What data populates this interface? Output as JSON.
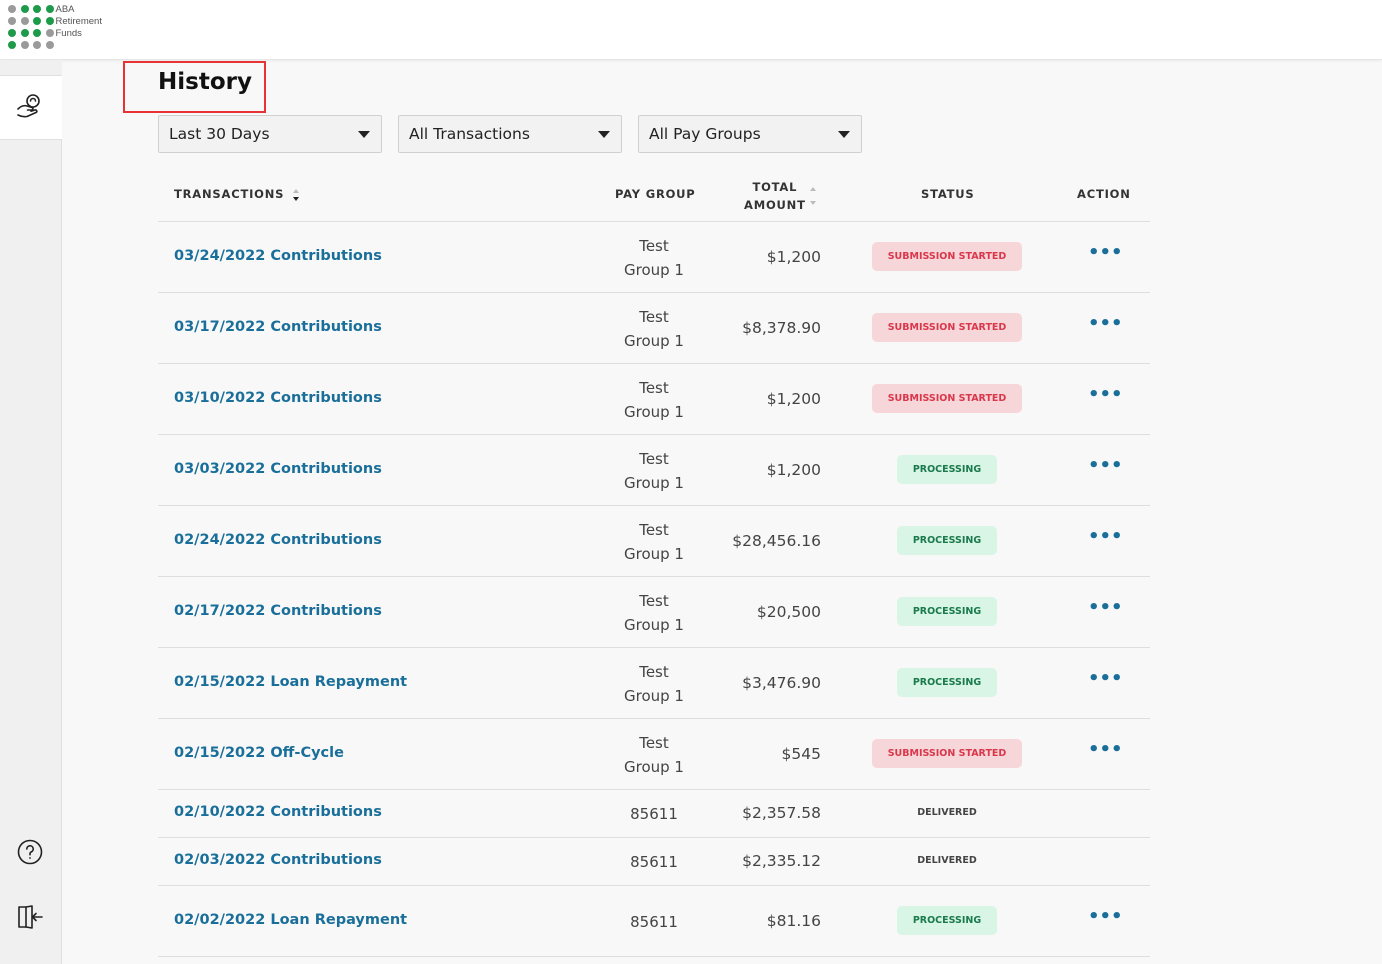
{
  "logo": {
    "lines": [
      "ABA",
      "Retirement",
      "Funds"
    ],
    "dot_colors": [
      "#9a9a9a",
      "#1e9b4a",
      "#1e9b4a",
      "#1e9b4a",
      "#9a9a9a",
      "#9a9a9a",
      "#1e9b4a",
      "#1e9b4a",
      "#1e9b4a",
      "#1e9b4a",
      "#1e9b4a",
      "#9a9a9a",
      "#1e9b4a",
      "#9a9a9a",
      "#9a9a9a",
      "#9a9a9a"
    ]
  },
  "sidebar": {
    "icons": [
      "hand-coin-icon",
      "help-circle-icon",
      "logout-icon"
    ]
  },
  "page": {
    "title": "History"
  },
  "filters": [
    {
      "name": "date-range-dropdown",
      "value": "Last 30 Days"
    },
    {
      "name": "transaction-type-dropdown",
      "value": "All Transactions"
    },
    {
      "name": "pay-group-dropdown",
      "value": "All Pay Groups"
    }
  ],
  "table": {
    "headers": {
      "transactions": "TRANSACTIONS",
      "pay_group": "PAY GROUP",
      "total_amount_line1": "TOTAL",
      "total_amount_line2": "AMOUNT",
      "status": "STATUS",
      "action": "ACTION"
    },
    "rows": [
      {
        "transaction": "03/24/2022 Contributions",
        "group_line1": "Test",
        "group_line2": "Group 1",
        "amount": "$1,200",
        "status": "SUBMISSION STARTED",
        "status_type": "started",
        "action": "•••"
      },
      {
        "transaction": "03/17/2022 Contributions",
        "group_line1": "Test",
        "group_line2": "Group 1",
        "amount": "$8,378.90",
        "status": "SUBMISSION STARTED",
        "status_type": "started",
        "action": "•••"
      },
      {
        "transaction": "03/10/2022 Contributions",
        "group_line1": "Test",
        "group_line2": "Group 1",
        "amount": "$1,200",
        "status": "SUBMISSION STARTED",
        "status_type": "started",
        "action": "•••"
      },
      {
        "transaction": "03/03/2022 Contributions",
        "group_line1": "Test",
        "group_line2": "Group 1",
        "amount": "$1,200",
        "status": "PROCESSING",
        "status_type": "processing",
        "action": "•••"
      },
      {
        "transaction": "02/24/2022 Contributions",
        "group_line1": "Test",
        "group_line2": "Group 1",
        "amount": "$28,456.16",
        "status": "PROCESSING",
        "status_type": "processing",
        "action": "•••"
      },
      {
        "transaction": "02/17/2022 Contributions",
        "group_line1": "Test",
        "group_line2": "Group 1",
        "amount": "$20,500",
        "status": "PROCESSING",
        "status_type": "processing",
        "action": "•••"
      },
      {
        "transaction": "02/15/2022 Loan Repayment",
        "group_line1": "Test",
        "group_line2": "Group 1",
        "amount": "$3,476.90",
        "status": "PROCESSING",
        "status_type": "processing",
        "action": "•••"
      },
      {
        "transaction": "02/15/2022 Off-Cycle",
        "group_line1": "Test",
        "group_line2": "Group 1",
        "amount": "$545",
        "status": "SUBMISSION STARTED",
        "status_type": "started",
        "action": "•••"
      },
      {
        "transaction": "02/10/2022 Contributions",
        "group_line1": "85611",
        "group_line2": "",
        "amount": "$2,357.58",
        "status": "DELIVERED",
        "status_type": "delivered",
        "action": ""
      },
      {
        "transaction": "02/03/2022 Contributions",
        "group_line1": "85611",
        "group_line2": "",
        "amount": "$2,335.12",
        "status": "DELIVERED",
        "status_type": "delivered",
        "action": ""
      },
      {
        "transaction": "02/02/2022 Loan Repayment",
        "group_line1": "85611",
        "group_line2": "",
        "amount": "$81.16",
        "status": "PROCESSING",
        "status_type": "processing",
        "action": "•••"
      }
    ]
  },
  "colors": {
    "link": "#1a6f9a",
    "started_bg": "#f7d6d9",
    "started_fg": "#d9374b",
    "processing_bg": "#d8f5e6",
    "processing_fg": "#1a7a4c",
    "highlight_box": "#e63333"
  }
}
